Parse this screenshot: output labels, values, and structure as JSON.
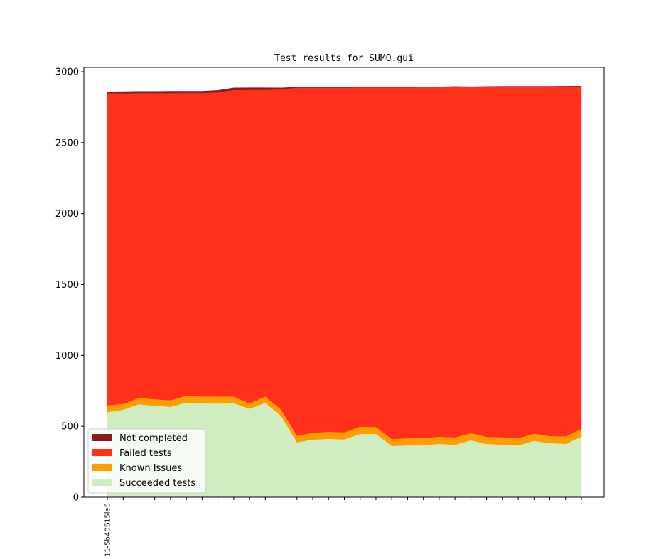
{
  "chart_data": {
    "type": "area",
    "title": "Test results for SUMO.gui",
    "xlabel": "",
    "ylabel": "",
    "ylim": [
      0,
      3030
    ],
    "yticks": [
      0,
      500,
      1000,
      1500,
      2000,
      2500,
      3000
    ],
    "x_tick_labels": [
      "11-5b40515le5",
      "",
      "",
      "",
      "",
      "",
      "",
      "",
      "",
      "",
      "",
      "",
      "",
      "",
      "",
      "",
      "",
      "",
      "",
      "",
      "",
      "",
      "",
      "",
      "",
      "",
      "",
      "",
      "",
      "",
      ""
    ],
    "legend_position": "lower-left",
    "grid": false,
    "series": [
      {
        "name": "Succeeded tests",
        "color": "#cfedc0",
        "values": [
          600,
          618,
          656,
          645,
          638,
          668,
          663,
          661,
          663,
          624,
          666,
          574,
          388,
          407,
          412,
          408,
          447,
          446,
          362,
          366,
          366,
          377,
          370,
          402,
          376,
          371,
          366,
          398,
          382,
          377,
          427
        ]
      },
      {
        "name": "Known Issues",
        "color": "#ff9c00",
        "values": [
          48,
          41,
          44,
          46,
          46,
          48,
          48,
          50,
          47,
          38,
          44,
          44,
          46,
          48,
          50,
          50,
          51,
          50,
          48,
          50,
          51,
          50,
          52,
          50,
          50,
          52,
          50,
          50,
          50,
          52,
          55
        ]
      },
      {
        "name": "Failed tests",
        "color": "#ff311a",
        "values": [
          2200,
          2188,
          2149,
          2158,
          2165,
          2134,
          2139,
          2143,
          2161,
          2210,
          2162,
          2258,
          2454,
          2433,
          2426,
          2430,
          2392,
          2394,
          2480,
          2474,
          2474,
          2464,
          2472,
          2440,
          2468,
          2472,
          2479,
          2447,
          2463,
          2467,
          2414
        ]
      },
      {
        "name": "Not completed",
        "color": "#8f1a1c",
        "values": [
          10,
          12,
          12,
          12,
          13,
          12,
          12,
          14,
          15,
          15,
          15,
          10,
          3,
          3,
          3,
          3,
          2,
          2,
          2,
          2,
          2,
          2,
          2,
          2,
          2,
          2,
          2,
          2,
          2,
          2,
          2
        ]
      }
    ],
    "legend_order": [
      "Not completed",
      "Failed tests",
      "Known Issues",
      "Succeeded tests"
    ]
  }
}
